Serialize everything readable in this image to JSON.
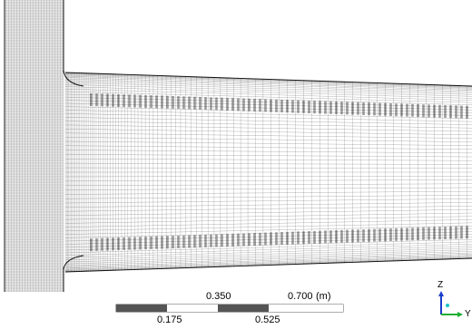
{
  "scale_bar": {
    "top_labels": [
      "0.350",
      "0.700"
    ],
    "bottom_labels": [
      "0.175",
      "0.525"
    ],
    "unit": "(m)"
  },
  "triad": {
    "up_axis": "Z",
    "right_axis": "Y"
  },
  "colors": {
    "mesh": "#000000",
    "background": "#ffffff",
    "scale_dark": "#555555",
    "scale_light": "#ffffff",
    "axis_z": "#1a3ec8",
    "axis_y": "#1fae32",
    "axis_x": "#19c3c8"
  }
}
